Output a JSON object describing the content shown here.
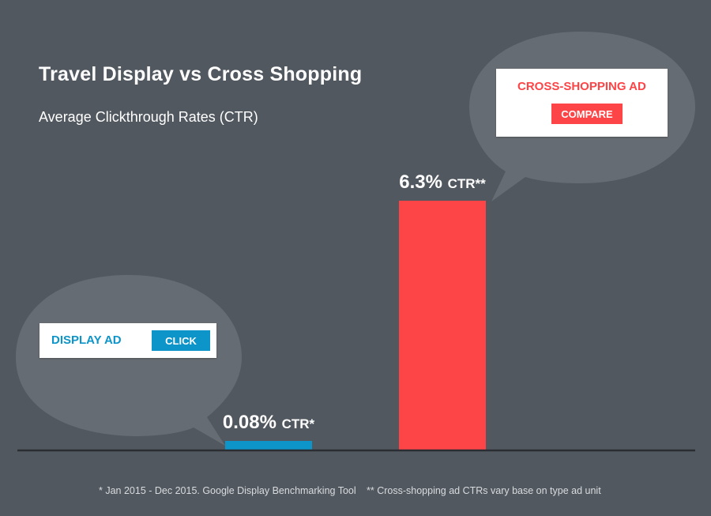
{
  "title": "Travel Display vs Cross Shopping",
  "subtitle": "Average Clickthrough Rates (CTR)",
  "footnotes": {
    "left": "* Jan 2015 - Dec 2015. Google Display Benchmarking Tool",
    "right": "** Cross-shopping ad CTRs vary base on type ad unit"
  },
  "colors": {
    "background": "#525860",
    "bubble": "#666c73",
    "display": "#0d94c8",
    "cross": "#fd4447",
    "axis": "#2a2e33",
    "text": "#ffffff"
  },
  "display_ad": {
    "label": "DISPLAY AD",
    "button": "CLICK"
  },
  "cross_ad": {
    "label": "CROSS-SHOPPING AD",
    "button": "COMPARE"
  },
  "chart_data": {
    "type": "bar",
    "title": "Travel Display vs Cross Shopping",
    "subtitle": "Average Clickthrough Rates (CTR)",
    "categories": [
      "DISPLAY AD",
      "CROSS-SHOPPING AD"
    ],
    "values": [
      0.08,
      6.3
    ],
    "unit": "%",
    "value_labels": [
      {
        "value": "0.08%",
        "suffix": "CTR*"
      },
      {
        "value": "6.3%",
        "suffix": "CTR**"
      }
    ],
    "colors": [
      "#0d94c8",
      "#fd4447"
    ],
    "ylim": [
      0,
      6.3
    ],
    "grid": false,
    "legend": "none"
  }
}
